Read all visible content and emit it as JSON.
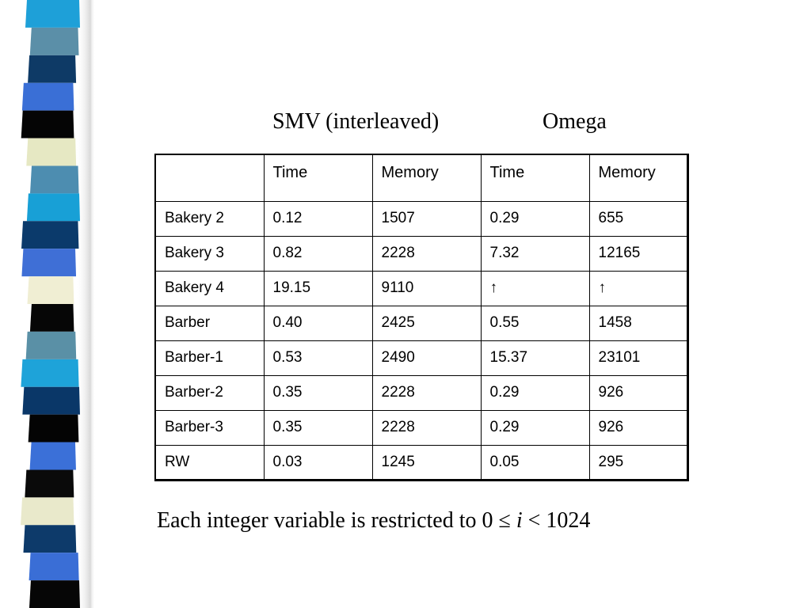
{
  "decor": {
    "stripe_colors": [
      "#1ea0d8",
      "#5b8fa8",
      "#0e3a66",
      "#3a6fd6",
      "#050505",
      "#e6e8c3",
      "#4d8db0",
      "#18a0d6",
      "#0b3a6b",
      "#3f6fd6",
      "#f0eed3",
      "#060606",
      "#5a90a6",
      "#1ea3d9",
      "#0a3768",
      "#040404",
      "#3b70d8",
      "#0a0a0a",
      "#e9e9cb",
      "#0d3a6a",
      "#3a6ed6",
      "#060606"
    ]
  },
  "heading": {
    "col_group_1": "SMV (interleaved)",
    "col_group_2": "Omega"
  },
  "table": {
    "header": [
      "",
      "Time",
      "Memory",
      "Time",
      "Memory"
    ],
    "rows": [
      [
        "Bakery  2",
        "0.12",
        "1507",
        "0.29",
        "655"
      ],
      [
        "Bakery  3",
        "0.82",
        "2228",
        "7.32",
        "12165"
      ],
      [
        "Bakery  4",
        "19.15",
        "9110",
        "↑",
        "↑"
      ],
      [
        "Barber",
        "0.40",
        "2425",
        "0.55",
        "1458"
      ],
      [
        "Barber-1",
        "0.53",
        "2490",
        "15.37",
        "23101"
      ],
      [
        "Barber-2",
        "0.35",
        "2228",
        "0.29",
        "926"
      ],
      [
        "Barber-3",
        "0.35",
        "2228",
        "0.29",
        "926"
      ],
      [
        "RW",
        "0.03",
        "1245",
        "0.05",
        "295"
      ]
    ]
  },
  "footnote": {
    "prefix": "Each integer variable is restricted to 0 ≤ ",
    "variable": "i",
    "suffix": " < 1024"
  }
}
